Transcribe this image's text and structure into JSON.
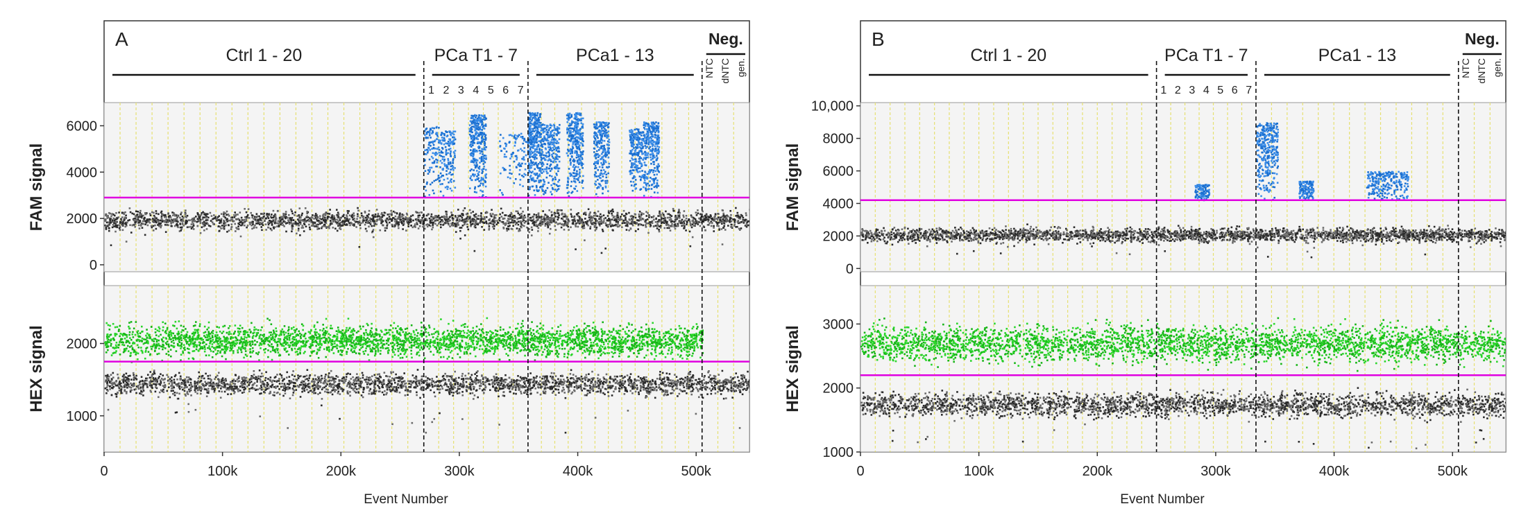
{
  "chart_data": [
    {
      "panel": "A",
      "type": "scatter",
      "xlabel": "Event Number",
      "xlim": [
        0,
        545000
      ],
      "xticks": [
        0,
        100000,
        200000,
        300000,
        400000,
        500000
      ],
      "xtick_labels": [
        "0",
        "100k",
        "200k",
        "300k",
        "400k",
        "500k"
      ],
      "group_labels": [
        "Ctrl 1 - 20",
        "PCa T1 - 7",
        "PCa1 - 13",
        "Neg."
      ],
      "groups": [
        {
          "label": "Ctrl 1 - 20",
          "start": 0,
          "end": 270000,
          "wells": 20
        },
        {
          "label": "PCa T1 - 7",
          "start": 270000,
          "end": 358000,
          "wells": 7
        },
        {
          "label": "PCa1 - 13",
          "start": 358000,
          "end": 505000,
          "wells": 13
        },
        {
          "label": "Neg.",
          "start": 505000,
          "end": 545000,
          "wells": 3
        }
      ],
      "tumor_well_numbers": [
        "1",
        "2",
        "3",
        "4",
        "5",
        "6",
        "7"
      ],
      "neg_well_labels": [
        "NTC",
        "dNTC",
        "gen."
      ],
      "dividers": [
        270000,
        358000,
        505000
      ],
      "top": {
        "ylabel": "FAM signal",
        "ylim": [
          -300,
          7000
        ],
        "yticks": [
          0,
          2000,
          4000,
          6000
        ],
        "ytick_labels": [
          "0",
          "2000",
          "4000",
          "6000"
        ],
        "threshold": 2900,
        "negative_level": 1950,
        "positive_clusters": [
          {
            "x": [
              270000,
              282000
            ],
            "y": [
              2900,
              6000
            ],
            "density": 0.35
          },
          {
            "x": [
              282000,
              296000
            ],
            "y": [
              2900,
              5800
            ],
            "density": 0.5
          },
          {
            "x": [
              308000,
              322000
            ],
            "y": [
              2900,
              6500
            ],
            "density": 1.0
          },
          {
            "x": [
              333000,
              358000
            ],
            "y": [
              2900,
              5700
            ],
            "density": 0.35
          },
          {
            "x": [
              358000,
              368000
            ],
            "y": [
              2900,
              6600
            ],
            "density": 1.0
          },
          {
            "x": [
              368000,
              384000
            ],
            "y": [
              2900,
              6100
            ],
            "density": 0.9
          },
          {
            "x": [
              390000,
              404000
            ],
            "y": [
              2900,
              6600
            ],
            "density": 1.0
          },
          {
            "x": [
              413000,
              426000
            ],
            "y": [
              2900,
              6200
            ],
            "density": 0.8
          },
          {
            "x": [
              443000,
              455000
            ],
            "y": [
              3200,
              5900
            ],
            "density": 0.7
          },
          {
            "x": [
              455000,
              468000
            ],
            "y": [
              2900,
              6200
            ],
            "density": 0.9
          }
        ]
      },
      "bottom": {
        "ylabel": "HEX signal",
        "ylim": [
          500,
          2800
        ],
        "yticks": [
          1000,
          2000
        ],
        "ytick_labels": [
          "1000",
          "2000"
        ],
        "threshold": 1750,
        "negative_level": 1450,
        "positive_level": 2050,
        "positive_range": [
          0,
          505000
        ]
      }
    },
    {
      "panel": "B",
      "type": "scatter",
      "xlabel": "Event Number",
      "xlim": [
        0,
        545000
      ],
      "xticks": [
        0,
        100000,
        200000,
        300000,
        400000,
        500000
      ],
      "xtick_labels": [
        "0",
        "100k",
        "200k",
        "300k",
        "400k",
        "500k"
      ],
      "group_labels": [
        "Ctrl 1 - 20",
        "PCa T1 - 7",
        "PCa1 - 13",
        "Neg."
      ],
      "groups": [
        {
          "label": "Ctrl 1 - 20",
          "start": 0,
          "end": 250000,
          "wells": 20
        },
        {
          "label": "PCa T1 - 7",
          "start": 250000,
          "end": 334000,
          "wells": 7
        },
        {
          "label": "PCa1 - 13",
          "start": 334000,
          "end": 505000,
          "wells": 13
        },
        {
          "label": "Neg.",
          "start": 505000,
          "end": 545000,
          "wells": 3
        }
      ],
      "tumor_well_numbers": [
        "1",
        "2",
        "3",
        "4",
        "5",
        "6",
        "7"
      ],
      "neg_well_labels": [
        "NTC",
        "dNTC",
        "gen."
      ],
      "dividers": [
        250000,
        334000,
        505000
      ],
      "top": {
        "ylabel": "FAM signal",
        "ylim": [
          -200,
          10200
        ],
        "yticks": [
          0,
          2000,
          4000,
          6000,
          8000,
          10000
        ],
        "ytick_labels": [
          "0",
          "2000",
          "4000",
          "6000",
          "8000",
          "10,000"
        ],
        "threshold": 4200,
        "negative_level": 2100,
        "positive_clusters": [
          {
            "x": [
              282000,
              294000
            ],
            "y": [
              4200,
              5200
            ],
            "density": 0.3
          },
          {
            "x": [
              334000,
              352000
            ],
            "y": [
              4200,
              9000
            ],
            "density": 1.0
          },
          {
            "x": [
              370000,
              382000
            ],
            "y": [
              4200,
              5400
            ],
            "density": 0.4
          },
          {
            "x": [
              427000,
              462000
            ],
            "y": [
              4200,
              6000
            ],
            "density": 0.8
          }
        ]
      },
      "bottom": {
        "ylabel": "HEX signal",
        "ylim": [
          1000,
          3600
        ],
        "yticks": [
          1000,
          2000,
          3000
        ],
        "ytick_labels": [
          "1000",
          "2000",
          "3000"
        ],
        "threshold": 2200,
        "negative_level": 1750,
        "positive_level": 2700,
        "positive_range": [
          0,
          545000
        ]
      }
    }
  ]
}
